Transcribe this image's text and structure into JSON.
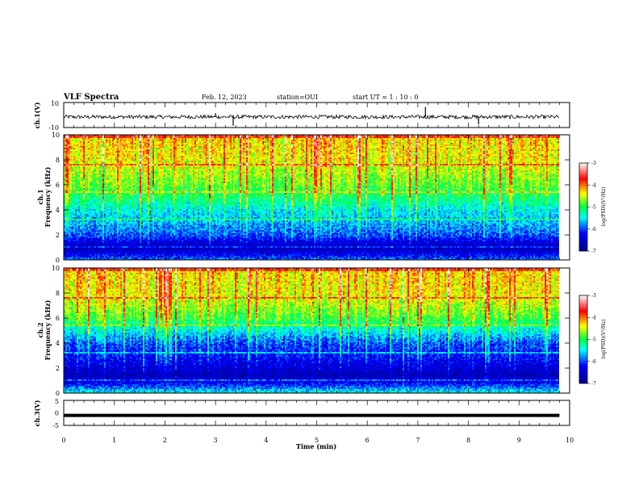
{
  "header": {
    "title": "VLF Spectra",
    "date": "Feb. 12, 2023",
    "station": "station=OUI",
    "start": "start UT =  1 : 10 : 0"
  },
  "colors": {
    "spectrogram_base": "#1b2fb5",
    "trace": "#000000"
  },
  "chart_data": [
    {
      "type": "line",
      "panel": "ch1-waveform",
      "ylabel": "ch.1(V)",
      "ylim": [
        -10,
        10
      ],
      "yticks": [
        "10",
        "-10"
      ],
      "xlim": [
        0,
        10
      ],
      "series": [
        {
          "x": [
            0,
            1.9,
            2.7,
            3.0,
            3.35,
            7.15,
            8.2,
            9.8
          ],
          "values": [
            -1.5,
            -1.2,
            -1.8,
            1.5,
            -8.5,
            6.5,
            -7.5,
            -1.5
          ]
        }
      ]
    },
    {
      "type": "heatmap",
      "panel": "ch1-spectrogram",
      "ylabel": "Frequency (kHz)",
      "channel_label": "ch.1",
      "ylim": [
        0,
        10
      ],
      "yticks": [
        "0",
        "2",
        "4",
        "6",
        "8",
        "10"
      ],
      "xlim": [
        0,
        10
      ],
      "colorbar": {
        "label": "log(PSD)(V²/Hz)",
        "range": [
          -7,
          -3
        ],
        "ticks": [
          "-3",
          "-4",
          "-5",
          "-6",
          "-7"
        ]
      },
      "frequency_profile": {
        "freq_khz": [
          0,
          0.5,
          1,
          1.5,
          2,
          3,
          4,
          5,
          6,
          7,
          8,
          10
        ],
        "log_psd": [
          -5.8,
          -6.3,
          -6.7,
          -6.4,
          -6.0,
          -5.7,
          -5.5,
          -5.1,
          -4.8,
          -4.6,
          -4.4,
          -4.3
        ]
      }
    },
    {
      "type": "heatmap",
      "panel": "ch2-spectrogram",
      "ylabel": "Frequency (kHz)",
      "channel_label": "ch.2",
      "ylim": [
        0,
        10
      ],
      "yticks": [
        "0",
        "2",
        "4",
        "6",
        "8",
        "10"
      ],
      "xlim": [
        0,
        10
      ],
      "colorbar": {
        "label": "log(PSD)(V²/Hz)",
        "range": [
          -7,
          -3
        ],
        "ticks": [
          "-3",
          "-4",
          "-5",
          "-6",
          "-7"
        ]
      },
      "frequency_profile": {
        "freq_khz": [
          0,
          0.5,
          1,
          1.5,
          2,
          3,
          4,
          5,
          6,
          7,
          8,
          10
        ],
        "log_psd": [
          -5.3,
          -5.9,
          -6.4,
          -6.7,
          -6.5,
          -6.2,
          -6.0,
          -5.5,
          -4.9,
          -4.6,
          -4.4,
          -4.3
        ]
      }
    },
    {
      "type": "line",
      "panel": "ch3-waveform",
      "ylabel": "ch.3(V)",
      "ylim": [
        -5,
        5
      ],
      "yticks": [
        "5",
        "0",
        "-5"
      ],
      "xlim": [
        0,
        10
      ],
      "series": [
        {
          "x": [
            0,
            9.8
          ],
          "values": [
            -1,
            -1
          ]
        }
      ]
    }
  ],
  "x_axis": {
    "label": "Time (min)",
    "ticks": [
      "0",
      "1",
      "2",
      "3",
      "4",
      "5",
      "6",
      "7",
      "8",
      "9",
      "10"
    ]
  }
}
